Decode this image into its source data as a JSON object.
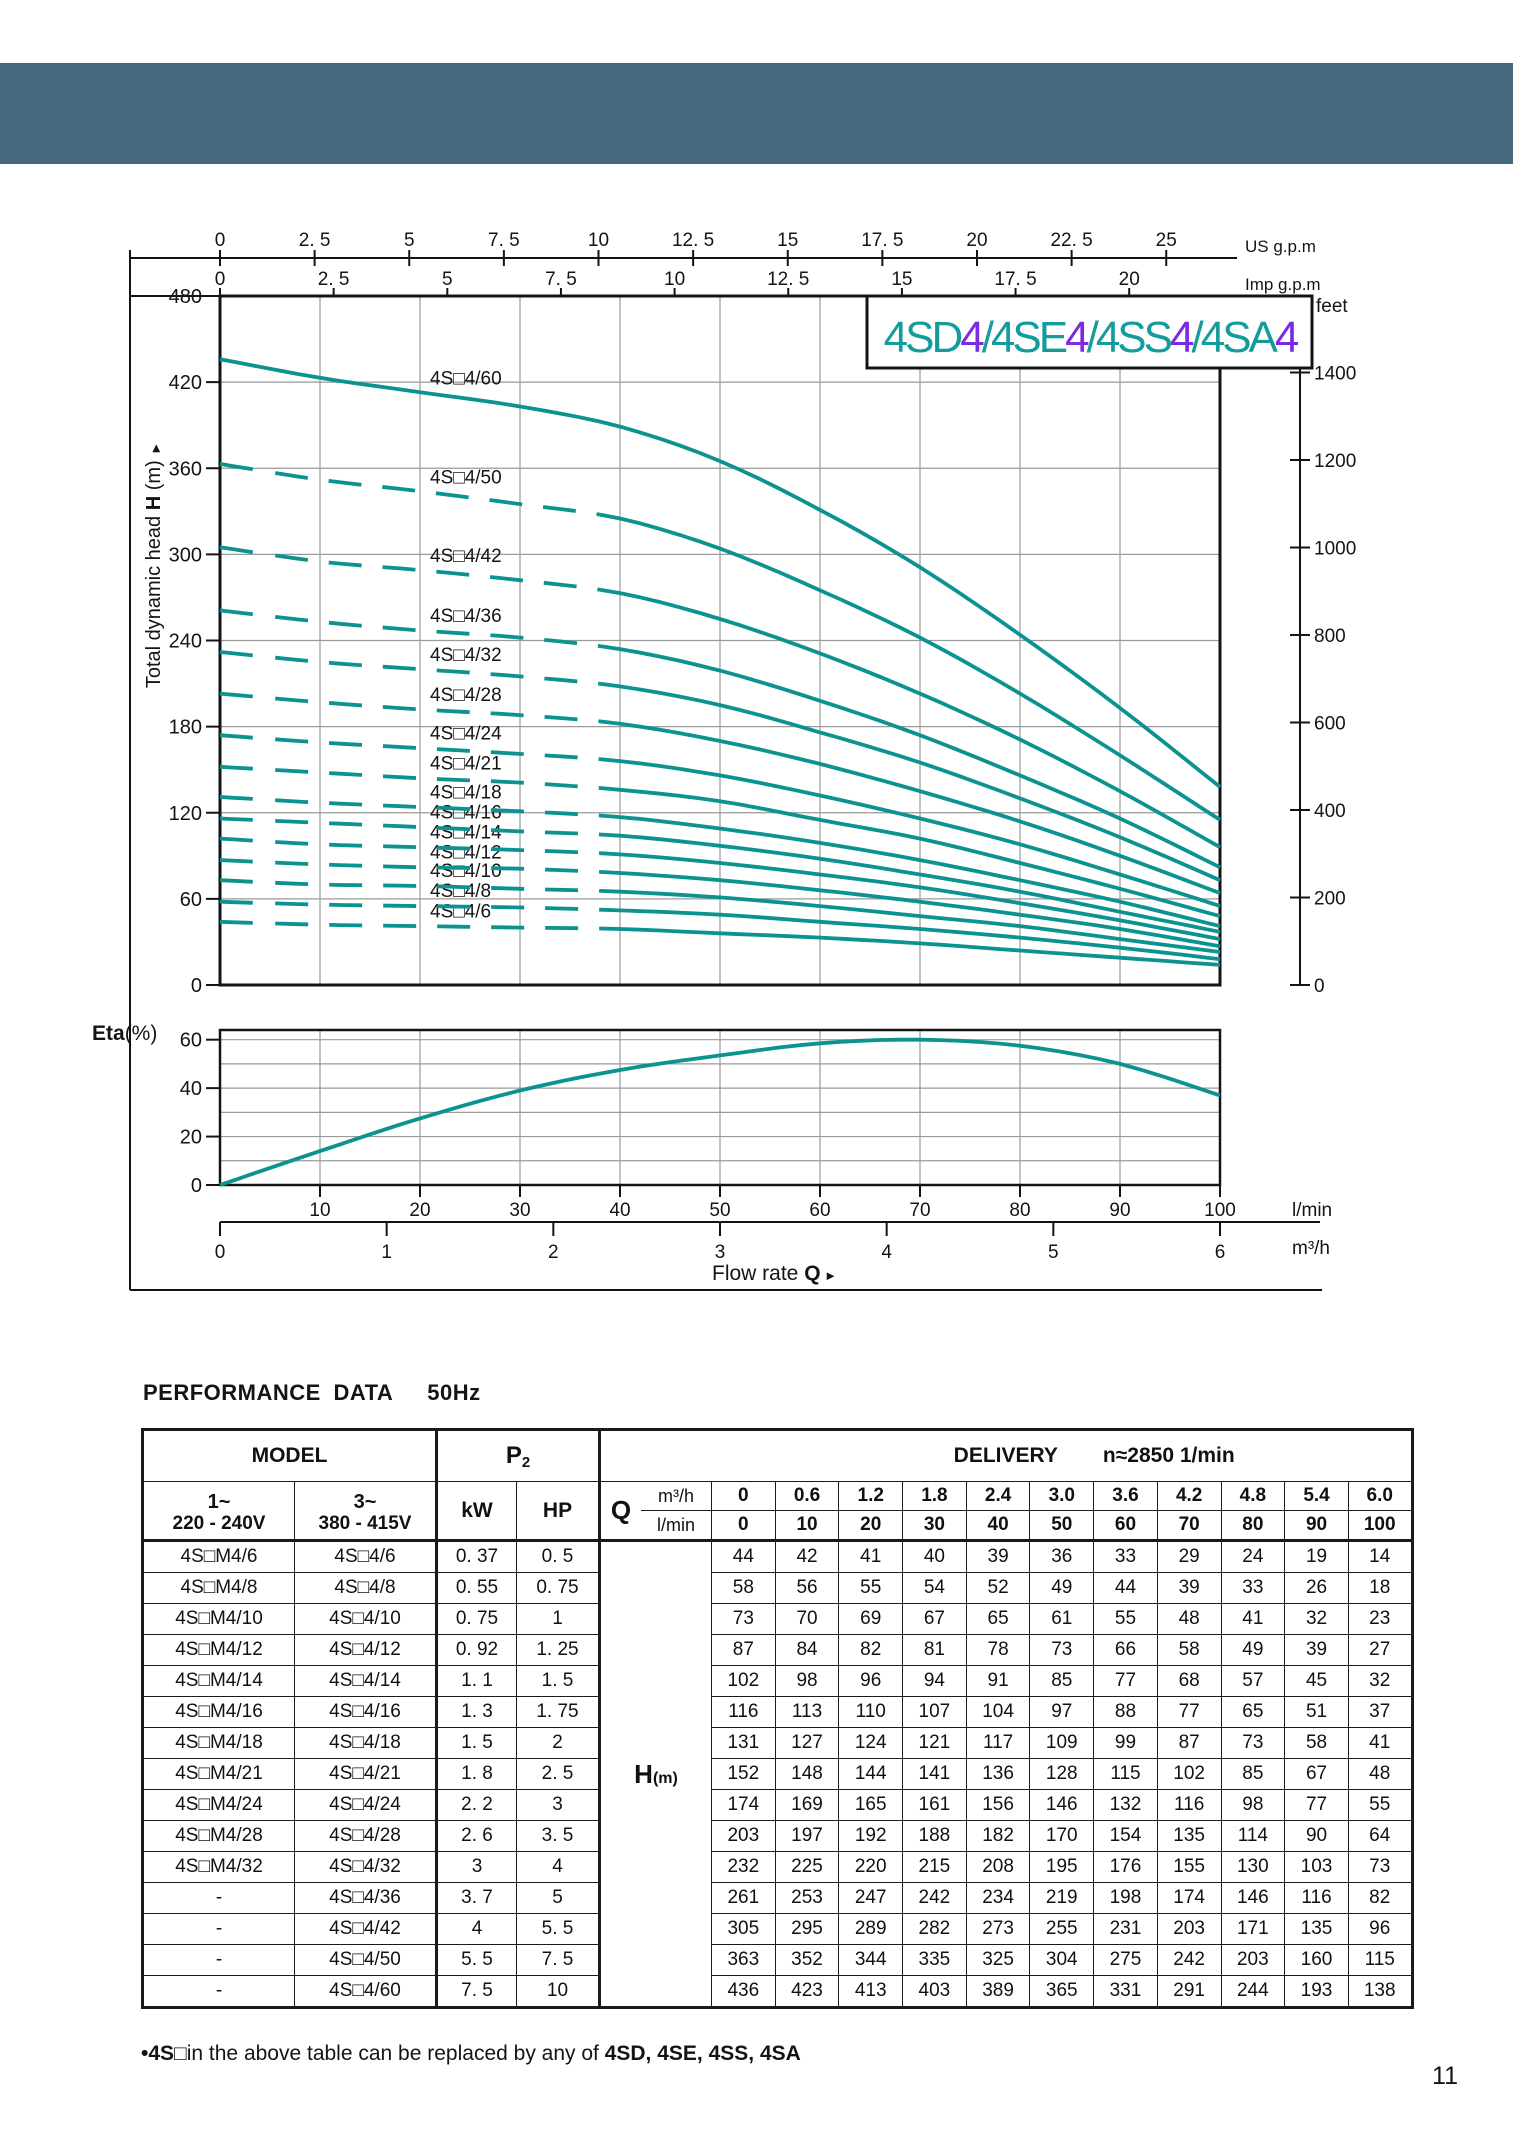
{
  "page": {
    "number": "11",
    "section_title": "PERFORMANCE  DATA",
    "frequency": "50Hz",
    "footnote": {
      "bullet": "•",
      "bold_prefix": "4S",
      "box": "□",
      "text": "in the above table can be replaced by any of ",
      "bold_models": "4SD, 4SE, 4SS, 4SA"
    }
  },
  "header_bar": {
    "color": "#46687E"
  },
  "figure": {
    "title_segments": [
      {
        "t": "4SD",
        "c": "teal"
      },
      {
        "t": "4",
        "c": "purple"
      },
      {
        "t": "/",
        "c": "teal"
      },
      {
        "t": "4SE",
        "c": "teal"
      },
      {
        "t": "4",
        "c": "purple"
      },
      {
        "t": "/",
        "c": "teal"
      },
      {
        "t": "4SS",
        "c": "teal"
      },
      {
        "t": "4",
        "c": "purple"
      },
      {
        "t": "/",
        "c": "teal"
      },
      {
        "t": "4SA",
        "c": "teal"
      },
      {
        "t": "4",
        "c": "purple"
      }
    ],
    "colors": {
      "curve": "#0c9391",
      "teal": "#149c9c",
      "purple": "#7b2be0",
      "grid": "#9a9a9a",
      "axis": "#141414"
    },
    "y_axis": {
      "label_pre": "Total dynamic head ",
      "label_bold": "H",
      "label_post": " (m)",
      "arrow": "►",
      "ticks": [
        "480",
        "420",
        "360",
        "300",
        "240",
        "180",
        "120",
        "60",
        "0"
      ]
    },
    "right_axis": {
      "unit": "feet",
      "ticks": [
        "1400",
        "1200",
        "1000",
        "800",
        "600",
        "400",
        "200",
        "0"
      ]
    },
    "us_axis": {
      "unit": "US g.p.m",
      "ticks": [
        {
          "v": 0,
          "t": "0"
        },
        {
          "v": 2.5,
          "t": "2. 5"
        },
        {
          "v": 5,
          "t": "5"
        },
        {
          "v": 7.5,
          "t": "7. 5"
        },
        {
          "v": 10,
          "t": "10"
        },
        {
          "v": 12.5,
          "t": "12. 5"
        },
        {
          "v": 15,
          "t": "15"
        },
        {
          "v": 17.5,
          "t": "17. 5"
        },
        {
          "v": 20,
          "t": "20"
        },
        {
          "v": 22.5,
          "t": "22. 5"
        },
        {
          "v": 25,
          "t": "25"
        }
      ]
    },
    "imp_axis": {
      "unit": "Imp g.p.m",
      "ticks": [
        {
          "v": 0,
          "t": "0"
        },
        {
          "v": 2.5,
          "t": "2. 5"
        },
        {
          "v": 5,
          "t": "5"
        },
        {
          "v": 7.5,
          "t": "7. 5"
        },
        {
          "v": 10,
          "t": "10"
        },
        {
          "v": 12.5,
          "t": "12. 5"
        },
        {
          "v": 15,
          "t": "15"
        },
        {
          "v": 17.5,
          "t": "17. 5"
        },
        {
          "v": 20,
          "t": "20"
        }
      ]
    },
    "eta_axis": {
      "label_bold": "Eta",
      "label_post": "(%)",
      "ticks": [
        "60",
        "40",
        "20",
        "0"
      ]
    },
    "bottom_axis": {
      "lmin_unit": "l/min",
      "lmin_ticks": [
        "10",
        "20",
        "30",
        "40",
        "50",
        "60",
        "70",
        "80",
        "90",
        "100"
      ],
      "m3h_unit": "m³/h",
      "m3h_ticks": [
        "0",
        "1",
        "2",
        "3",
        "4",
        "5",
        "6"
      ],
      "xlabel_pre": "Flow  rate  ",
      "xlabel_bold": "Q",
      "xlabel_arrow": "►"
    }
  },
  "chart_data": [
    {
      "type": "line",
      "title": "4SD4/4SE4/4SS4/4SA4",
      "xlabel": "Flow rate Q",
      "ylabel": "Total dynamic head H (m)",
      "x_lmin": [
        0,
        10,
        20,
        30,
        40,
        50,
        60,
        70,
        80,
        90,
        100
      ],
      "ylim": [
        0,
        480
      ],
      "right_axis_feet_lim": [
        0,
        1400
      ],
      "grid": true,
      "series": [
        {
          "name": "4S□4/6",
          "values": [
            44,
            42,
            41,
            40,
            39,
            36,
            33,
            29,
            24,
            19,
            14
          ]
        },
        {
          "name": "4S□4/8",
          "values": [
            58,
            56,
            55,
            54,
            52,
            49,
            44,
            39,
            33,
            26,
            18
          ]
        },
        {
          "name": "4S□4/10",
          "values": [
            73,
            70,
            69,
            67,
            65,
            61,
            55,
            48,
            41,
            32,
            23
          ]
        },
        {
          "name": "4S□4/12",
          "values": [
            87,
            84,
            82,
            81,
            78,
            73,
            66,
            58,
            49,
            39,
            27
          ]
        },
        {
          "name": "4S□4/14",
          "values": [
            102,
            98,
            96,
            94,
            91,
            85,
            77,
            68,
            57,
            45,
            32
          ]
        },
        {
          "name": "4S□4/16",
          "values": [
            116,
            113,
            110,
            107,
            104,
            97,
            88,
            77,
            65,
            51,
            37
          ]
        },
        {
          "name": "4S□4/18",
          "values": [
            131,
            127,
            124,
            121,
            117,
            109,
            99,
            87,
            73,
            58,
            41
          ]
        },
        {
          "name": "4S□4/21",
          "values": [
            152,
            148,
            144,
            141,
            136,
            128,
            115,
            102,
            85,
            67,
            48
          ]
        },
        {
          "name": "4S□4/24",
          "values": [
            174,
            169,
            165,
            161,
            156,
            146,
            132,
            116,
            98,
            77,
            55
          ]
        },
        {
          "name": "4S□4/28",
          "values": [
            203,
            197,
            192,
            188,
            182,
            170,
            154,
            135,
            114,
            90,
            64
          ]
        },
        {
          "name": "4S□4/32",
          "values": [
            232,
            225,
            220,
            215,
            208,
            195,
            176,
            155,
            130,
            103,
            73
          ]
        },
        {
          "name": "4S□4/36",
          "values": [
            261,
            253,
            247,
            242,
            234,
            219,
            198,
            174,
            146,
            116,
            82
          ]
        },
        {
          "name": "4S□4/42",
          "values": [
            305,
            295,
            289,
            282,
            273,
            255,
            231,
            203,
            171,
            135,
            96
          ]
        },
        {
          "name": "4S□4/50",
          "values": [
            363,
            352,
            344,
            335,
            325,
            304,
            275,
            242,
            203,
            160,
            115
          ]
        },
        {
          "name": "4S□4/60",
          "values": [
            436,
            423,
            413,
            403,
            389,
            365,
            331,
            291,
            244,
            193,
            138
          ]
        }
      ]
    },
    {
      "type": "line",
      "name": "Efficiency",
      "ylabel": "Eta(%)",
      "x_lmin": [
        0,
        10,
        20,
        30,
        40,
        50,
        60,
        70,
        80,
        90,
        100
      ],
      "values": [
        0,
        14,
        27.5,
        39,
        47.5,
        53.5,
        58.5,
        60,
        57.5,
        50,
        37
      ],
      "ylim": [
        0,
        64
      ],
      "yticks": [
        60,
        40,
        20,
        0
      ],
      "grid": true
    }
  ],
  "table": {
    "headers": {
      "model": "MODEL",
      "p2_main": "P",
      "p2_sub": "2",
      "delivery": "DELIVERY",
      "speed": "n≈2850 1/min",
      "ph1_l1": "1~",
      "ph1_l2": "220 - 240V",
      "ph3_l1": "3~",
      "ph3_l2": "380 - 415V",
      "kw": "kW",
      "hp": "HP",
      "q": "Q",
      "m3h": "m³/h",
      "lmin": "l/min",
      "h_main": "H",
      "h_sub": "(m)",
      "m3h_values": [
        "0",
        "0.6",
        "1.2",
        "1.8",
        "2.4",
        "3.0",
        "3.6",
        "4.2",
        "4.8",
        "5.4",
        "6.0"
      ],
      "lmin_values": [
        "0",
        "10",
        "20",
        "30",
        "40",
        "50",
        "60",
        "70",
        "80",
        "90",
        "100"
      ]
    },
    "rows": [
      {
        "m1": "4S□M4/6",
        "m3": "4S□4/6",
        "kw": "0. 37",
        "hp": "0. 5",
        "s": 0
      },
      {
        "m1": "4S□M4/8",
        "m3": "4S□4/8",
        "kw": "0. 55",
        "hp": "0. 75",
        "s": 1
      },
      {
        "m1": "4S□M4/10",
        "m3": "4S□4/10",
        "kw": "0. 75",
        "hp": "1",
        "s": 2
      },
      {
        "m1": "4S□M4/12",
        "m3": "4S□4/12",
        "kw": "0. 92",
        "hp": "1. 25",
        "s": 3
      },
      {
        "m1": "4S□M4/14",
        "m3": "4S□4/14",
        "kw": "1. 1",
        "hp": "1. 5",
        "s": 4
      },
      {
        "m1": "4S□M4/16",
        "m3": "4S□4/16",
        "kw": "1. 3",
        "hp": "1. 75",
        "s": 5
      },
      {
        "m1": "4S□M4/18",
        "m3": "4S□4/18",
        "kw": "1. 5",
        "hp": "2",
        "s": 6
      },
      {
        "m1": "4S□M4/21",
        "m3": "4S□4/21",
        "kw": "1. 8",
        "hp": "2. 5",
        "s": 7
      },
      {
        "m1": "4S□M4/24",
        "m3": "4S□4/24",
        "kw": "2. 2",
        "hp": "3",
        "s": 8
      },
      {
        "m1": "4S□M4/28",
        "m3": "4S□4/28",
        "kw": "2. 6",
        "hp": "3. 5",
        "s": 9
      },
      {
        "m1": "4S□M4/32",
        "m3": "4S□4/32",
        "kw": "3",
        "hp": "4",
        "s": 10
      },
      {
        "m1": "-",
        "m3": "4S□4/36",
        "kw": "3. 7",
        "hp": "5",
        "s": 11
      },
      {
        "m1": "-",
        "m3": "4S□4/42",
        "kw": "4",
        "hp": "5. 5",
        "s": 12
      },
      {
        "m1": "-",
        "m3": "4S□4/50",
        "kw": "5. 5",
        "hp": "7. 5",
        "s": 13
      },
      {
        "m1": "-",
        "m3": "4S□4/60",
        "kw": "7. 5",
        "hp": "10",
        "s": 14
      }
    ]
  }
}
